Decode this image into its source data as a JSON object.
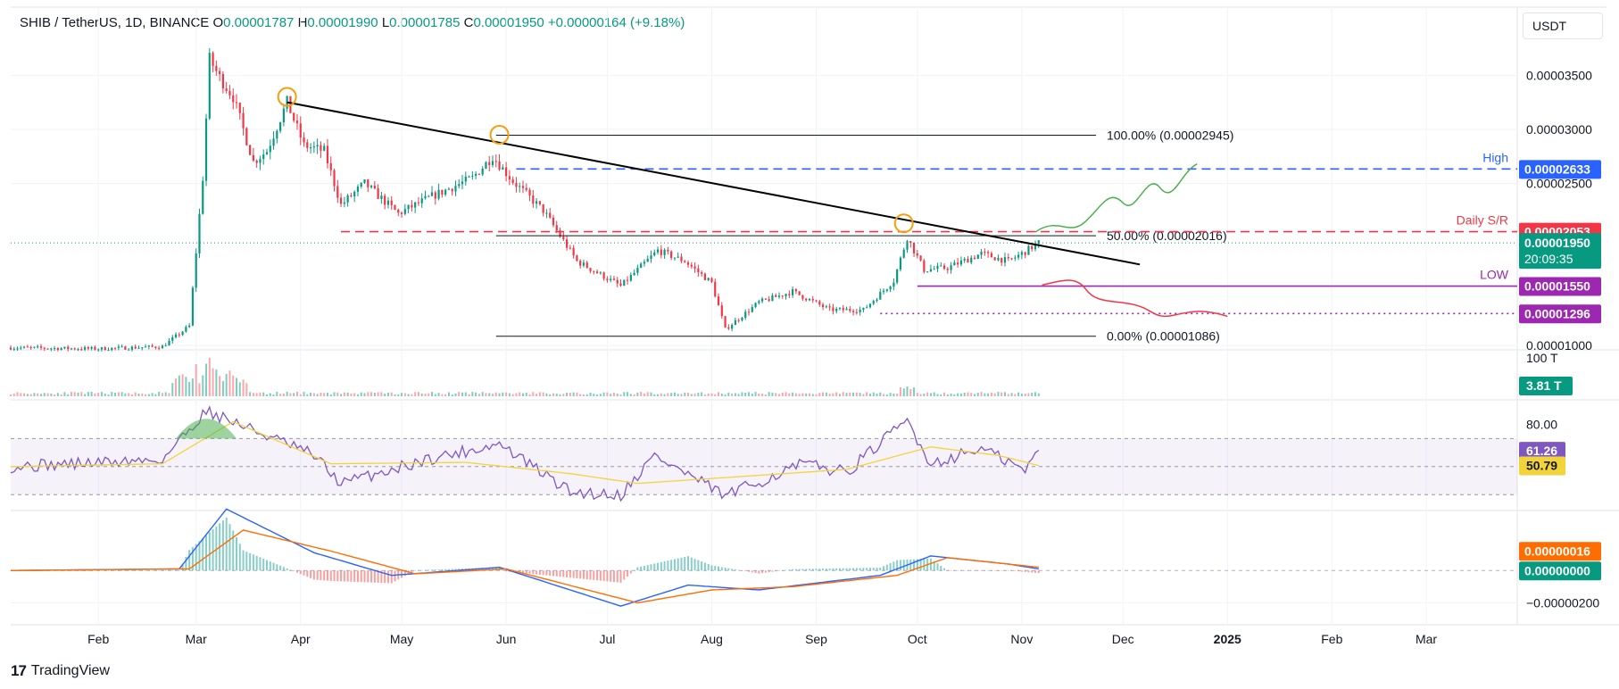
{
  "legend": {
    "symbol": "SHIB / TetherUS, 1D, BINANCE",
    "open_label": "O",
    "open": "0.00001787",
    "high_label": "H",
    "high": "0.00001990",
    "low_label": "L",
    "low": "0.00001785",
    "close_label": "C",
    "close": "0.00001950",
    "change": "+0.00000164 (+9.18%)"
  },
  "currency_button": "USDT",
  "branding": "TradingView",
  "colors": {
    "up": "#089981",
    "down": "#f23645",
    "trendline": "#000000",
    "high_line": "#2962ff",
    "sr_line": "#f23645",
    "low_line": "#9c27b0",
    "rsi": "#7e57c2",
    "rsi_ma": "#f2d43a",
    "macd": "#2962ff",
    "signal": "#ff6d00",
    "projection_up": "#4caf50",
    "projection_down": "#f23645",
    "pivot_circle": "#f59e0b"
  },
  "chart_data": [
    {
      "type": "candlestick",
      "panel": "price",
      "y_scale": "linear",
      "ylim": [
        9.6e-06,
        4.13e-05
      ],
      "x_ticks": [
        "Feb",
        "Mar",
        "Apr",
        "May",
        "Jun",
        "Jul",
        "Aug",
        "Sep",
        "Oct",
        "Nov",
        "Dec",
        "2025",
        "Feb",
        "Mar"
      ],
      "y_ticks": [
        "0.00003500",
        "0.00003000",
        "0.00002500",
        "0.00001000"
      ],
      "x_range": [
        "2024-01-06",
        "2025-03-28"
      ],
      "series": [
        {
          "name": "SHIB / TetherUS",
          "points": [
            [
              "2024-01-06",
              9.8e-06
            ],
            [
              "2024-02-01",
              9.7e-06
            ],
            [
              "2024-02-20",
              9.9e-06
            ],
            [
              "2024-02-28",
              1.18e-05
            ],
            [
              "2024-03-03",
              2.55e-05
            ],
            [
              "2024-03-05",
              3.65e-05
            ],
            [
              "2024-03-08",
              3.48e-05
            ],
            [
              "2024-03-12",
              3.3e-05
            ],
            [
              "2024-03-18",
              2.7e-05
            ],
            [
              "2024-03-22",
              2.8e-05
            ],
            [
              "2024-03-28",
              3.25e-05
            ],
            [
              "2024-04-02",
              2.85e-05
            ],
            [
              "2024-04-08",
              2.8e-05
            ],
            [
              "2024-04-13",
              2.3e-05
            ],
            [
              "2024-04-20",
              2.5e-05
            ],
            [
              "2024-04-30",
              2.22e-05
            ],
            [
              "2024-05-10",
              2.38e-05
            ],
            [
              "2024-05-22",
              2.55e-05
            ],
            [
              "2024-05-28",
              2.75e-05
            ],
            [
              "2024-06-03",
              2.52e-05
            ],
            [
              "2024-06-12",
              2.25e-05
            ],
            [
              "2024-06-22",
              1.78e-05
            ],
            [
              "2024-07-05",
              1.55e-05
            ],
            [
              "2024-07-16",
              1.88e-05
            ],
            [
              "2024-07-24",
              1.78e-05
            ],
            [
              "2024-08-01",
              1.58e-05
            ],
            [
              "2024-08-05",
              1.15e-05
            ],
            [
              "2024-08-15",
              1.4e-05
            ],
            [
              "2024-08-25",
              1.5e-05
            ],
            [
              "2024-09-05",
              1.33e-05
            ],
            [
              "2024-09-15",
              1.33e-05
            ],
            [
              "2024-09-24",
              1.6e-05
            ],
            [
              "2024-09-28",
              2e-05
            ],
            [
              "2024-10-03",
              1.7e-05
            ],
            [
              "2024-10-10",
              1.72e-05
            ],
            [
              "2024-10-20",
              1.85e-05
            ],
            [
              "2024-10-28",
              1.78e-05
            ],
            [
              "2024-11-01",
              1.85e-05
            ],
            [
              "2024-11-06",
              1.95e-05
            ]
          ]
        }
      ],
      "fibonacci": [
        {
          "label": "100.00% (0.00002945)",
          "value": 2.945e-05
        },
        {
          "label": "50.00% (0.00002016)",
          "value": 2.016e-05
        },
        {
          "label": "0.00% (0.00001086)",
          "value": 1.086e-05
        }
      ],
      "levels": [
        {
          "name": "High",
          "value": 2.633e-05,
          "label": "0.00002633",
          "style": "dashed"
        },
        {
          "name": "Daily S/R",
          "value": 2.053e-05,
          "label": "0.00002053",
          "style": "dashed"
        },
        {
          "name": "LOW",
          "value": 1.55e-05,
          "label": "0.00001550",
          "style": "solid"
        },
        {
          "name": "",
          "value": 1.296e-05,
          "label": "0.00001296",
          "style": "dotted"
        }
      ],
      "last_price": {
        "label": "0.00001950",
        "countdown": "20:09:35"
      },
      "trendline": [
        [
          "2024-03-28",
          3.25e-05
        ],
        [
          "2024-12-06",
          1.75e-05
        ]
      ],
      "pivots": [
        [
          "2024-03-28",
          3.3e-05
        ],
        [
          "2024-05-30",
          2.95e-05
        ],
        [
          "2024-09-27",
          2.13e-05
        ]
      ]
    },
    {
      "type": "bar",
      "panel": "volume",
      "y_ticks": [
        "100 T"
      ],
      "last_value_label": "3.81 T"
    },
    {
      "type": "line",
      "panel": "rsi",
      "ylim": [
        20,
        95
      ],
      "y_ticks": [
        "80.00"
      ],
      "bands": [
        70,
        50,
        30
      ],
      "series": [
        {
          "name": "RSI",
          "last_label": "61.26",
          "points": [
            [
              "2024-01-06",
              50
            ],
            [
              "2024-02-20",
              55
            ],
            [
              "2024-03-04",
              90
            ],
            [
              "2024-03-12",
              82
            ],
            [
              "2024-04-05",
              58
            ],
            [
              "2024-04-13",
              38
            ],
            [
              "2024-05-10",
              56
            ],
            [
              "2024-05-30",
              66
            ],
            [
              "2024-06-20",
              32
            ],
            [
              "2024-07-05",
              30
            ],
            [
              "2024-07-15",
              58
            ],
            [
              "2024-08-05",
              29
            ],
            [
              "2024-08-28",
              52
            ],
            [
              "2024-09-10",
              46
            ],
            [
              "2024-09-28",
              83
            ],
            [
              "2024-10-05",
              52
            ],
            [
              "2024-10-20",
              63
            ],
            [
              "2024-11-02",
              47
            ],
            [
              "2024-11-06",
              61.26
            ]
          ]
        },
        {
          "name": "RSI MA",
          "last_label": "50.79",
          "points": [
            [
              "2024-01-06",
              50
            ],
            [
              "2024-02-20",
              52
            ],
            [
              "2024-03-12",
              82
            ],
            [
              "2024-04-10",
              52
            ],
            [
              "2024-05-20",
              53
            ],
            [
              "2024-06-20",
              45
            ],
            [
              "2024-07-10",
              38
            ],
            [
              "2024-08-10",
              43
            ],
            [
              "2024-09-10",
              48
            ],
            [
              "2024-10-05",
              64
            ],
            [
              "2024-10-25",
              58
            ],
            [
              "2024-11-06",
              50.79
            ]
          ]
        }
      ]
    },
    {
      "type": "line",
      "panel": "macd",
      "y_ticks": [
        "−0.00000200"
      ],
      "zero_label": "0.00000000",
      "signal_label": "0.00000016",
      "series": [
        {
          "name": "MACD",
          "points": [
            [
              "2024-01-06",
              0
            ],
            [
              "2024-02-25",
              1e-07
            ],
            [
              "2024-03-10",
              3.8e-06
            ],
            [
              "2024-04-05",
              1.1e-06
            ],
            [
              "2024-04-28",
              -3e-07
            ],
            [
              "2024-05-30",
              2e-07
            ],
            [
              "2024-07-05",
              -2.2e-06
            ],
            [
              "2024-07-25",
              -9e-07
            ],
            [
              "2024-08-15",
              -1.2e-06
            ],
            [
              "2024-09-20",
              -3e-07
            ],
            [
              "2024-10-05",
              9e-07
            ],
            [
              "2024-10-28",
              4e-07
            ],
            [
              "2024-11-06",
              1e-07
            ]
          ]
        },
        {
          "name": "Signal",
          "points": [
            [
              "2024-01-06",
              0
            ],
            [
              "2024-02-28",
              1e-07
            ],
            [
              "2024-03-15",
              2.5e-06
            ],
            [
              "2024-04-10",
              1.2e-06
            ],
            [
              "2024-05-05",
              -2e-07
            ],
            [
              "2024-06-01",
              1e-07
            ],
            [
              "2024-07-10",
              -2e-06
            ],
            [
              "2024-08-01",
              -1.2e-06
            ],
            [
              "2024-08-25",
              -1e-06
            ],
            [
              "2024-09-25",
              -3e-07
            ],
            [
              "2024-10-10",
              8e-07
            ],
            [
              "2024-11-06",
              2e-07
            ]
          ]
        }
      ]
    }
  ]
}
